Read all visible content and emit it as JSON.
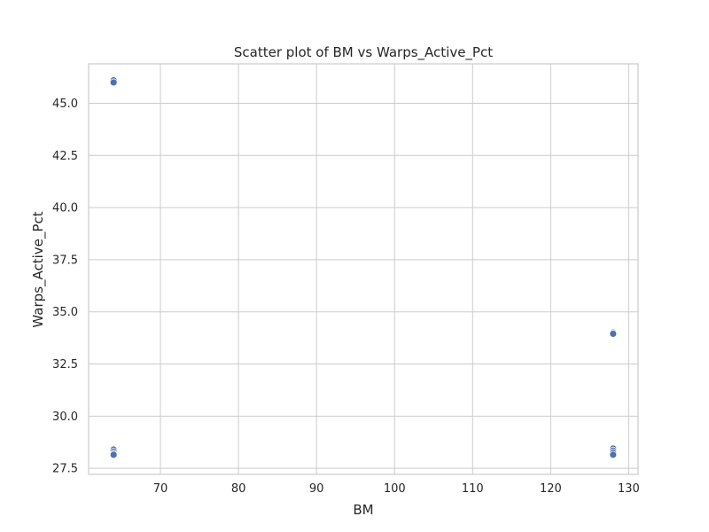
{
  "chart_data": {
    "type": "scatter",
    "title": "Scatter plot of BM vs Warps_Active_Pct",
    "xlabel": "BM",
    "ylabel": "Warps_Active_Pct",
    "xlim": [
      60.8,
      131.2
    ],
    "ylim": [
      27.21,
      46.89
    ],
    "xticks": [
      70,
      80,
      90,
      100,
      110,
      120,
      130
    ],
    "yticks": [
      27.5,
      30.0,
      32.5,
      35.0,
      37.5,
      40.0,
      42.5,
      45.0
    ],
    "grid": true,
    "point_color": "#4c72b0",
    "points": [
      {
        "x": 64,
        "y": 46.1
      },
      {
        "x": 64,
        "y": 46.0
      },
      {
        "x": 64,
        "y": 28.4
      },
      {
        "x": 64,
        "y": 28.3
      },
      {
        "x": 64,
        "y": 28.2
      },
      {
        "x": 64,
        "y": 28.15
      },
      {
        "x": 128,
        "y": 34.0
      },
      {
        "x": 128,
        "y": 33.95
      },
      {
        "x": 128,
        "y": 28.45
      },
      {
        "x": 128,
        "y": 28.35
      },
      {
        "x": 128,
        "y": 28.25
      },
      {
        "x": 128,
        "y": 28.15
      }
    ]
  }
}
